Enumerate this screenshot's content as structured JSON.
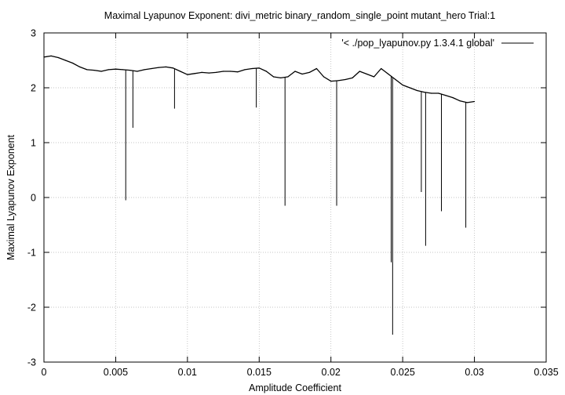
{
  "chart_data": {
    "type": "line",
    "title": "Maximal Lyapunov Exponent: divi_metric binary_random_single_point mutant_hero Trial:1",
    "xlabel": "Amplitude Coefficient",
    "ylabel": "Maximal Lyapunov Exponent",
    "xlim": [
      0,
      0.035
    ],
    "ylim": [
      -3,
      3
    ],
    "x_ticks": [
      0,
      0.005,
      0.01,
      0.015,
      0.02,
      0.025,
      0.03,
      0.035
    ],
    "x_tick_labels": [
      "0",
      "0.005",
      "0.01",
      "0.015",
      "0.02",
      "0.025",
      "0.03",
      "0.035"
    ],
    "y_ticks": [
      -3,
      -2,
      -1,
      0,
      1,
      2,
      3
    ],
    "y_tick_labels": [
      "-3",
      "-2",
      "-1",
      "0",
      "1",
      "2",
      "3"
    ],
    "grid": true,
    "legend_position": "top-right",
    "line_color": "#000000",
    "series": [
      {
        "name": "'< ./pop_lyapunov.py 1.3.4.1 global'",
        "x": [
          0.0,
          0.0005,
          0.001,
          0.0015,
          0.002,
          0.0025,
          0.003,
          0.0035,
          0.004,
          0.0045,
          0.005,
          0.0055,
          0.006,
          0.0065,
          0.007,
          0.0075,
          0.008,
          0.0085,
          0.009,
          0.0095,
          0.01,
          0.0105,
          0.011,
          0.0115,
          0.012,
          0.0125,
          0.013,
          0.0135,
          0.014,
          0.0145,
          0.015,
          0.0155,
          0.016,
          0.0165,
          0.017,
          0.0175,
          0.018,
          0.0185,
          0.019,
          0.0195,
          0.02,
          0.0205,
          0.021,
          0.0215,
          0.022,
          0.0225,
          0.023,
          0.0235,
          0.024,
          0.0245,
          0.025,
          0.0255,
          0.026,
          0.0265,
          0.027,
          0.0275,
          0.028,
          0.0285,
          0.029,
          0.0295,
          0.03
        ],
        "y": [
          2.56,
          2.58,
          2.55,
          2.5,
          2.45,
          2.38,
          2.33,
          2.32,
          2.3,
          2.33,
          2.34,
          2.33,
          2.32,
          2.3,
          2.33,
          2.35,
          2.37,
          2.38,
          2.36,
          2.3,
          2.24,
          2.26,
          2.28,
          2.27,
          2.28,
          2.3,
          2.3,
          2.29,
          2.33,
          2.35,
          2.36,
          2.3,
          2.2,
          2.18,
          2.2,
          2.3,
          2.25,
          2.28,
          2.35,
          2.2,
          2.12,
          2.13,
          2.15,
          2.18,
          2.3,
          2.25,
          2.2,
          2.35,
          2.25,
          2.15,
          2.05,
          2.0,
          1.95,
          1.92,
          1.9,
          1.9,
          1.86,
          1.82,
          1.76,
          1.73,
          1.75
        ]
      }
    ],
    "dips": [
      {
        "x": 0.0057,
        "y": -0.05
      },
      {
        "x": 0.0062,
        "y": 1.27
      },
      {
        "x": 0.0091,
        "y": 1.62
      },
      {
        "x": 0.0148,
        "y": 1.64
      },
      {
        "x": 0.0168,
        "y": -0.15
      },
      {
        "x": 0.0204,
        "y": -0.15
      },
      {
        "x": 0.0242,
        "y": -1.18
      },
      {
        "x": 0.0243,
        "y": -2.5
      },
      {
        "x": 0.0263,
        "y": 0.1
      },
      {
        "x": 0.0266,
        "y": -0.88
      },
      {
        "x": 0.0277,
        "y": -0.25
      },
      {
        "x": 0.0294,
        "y": -0.55
      }
    ]
  }
}
